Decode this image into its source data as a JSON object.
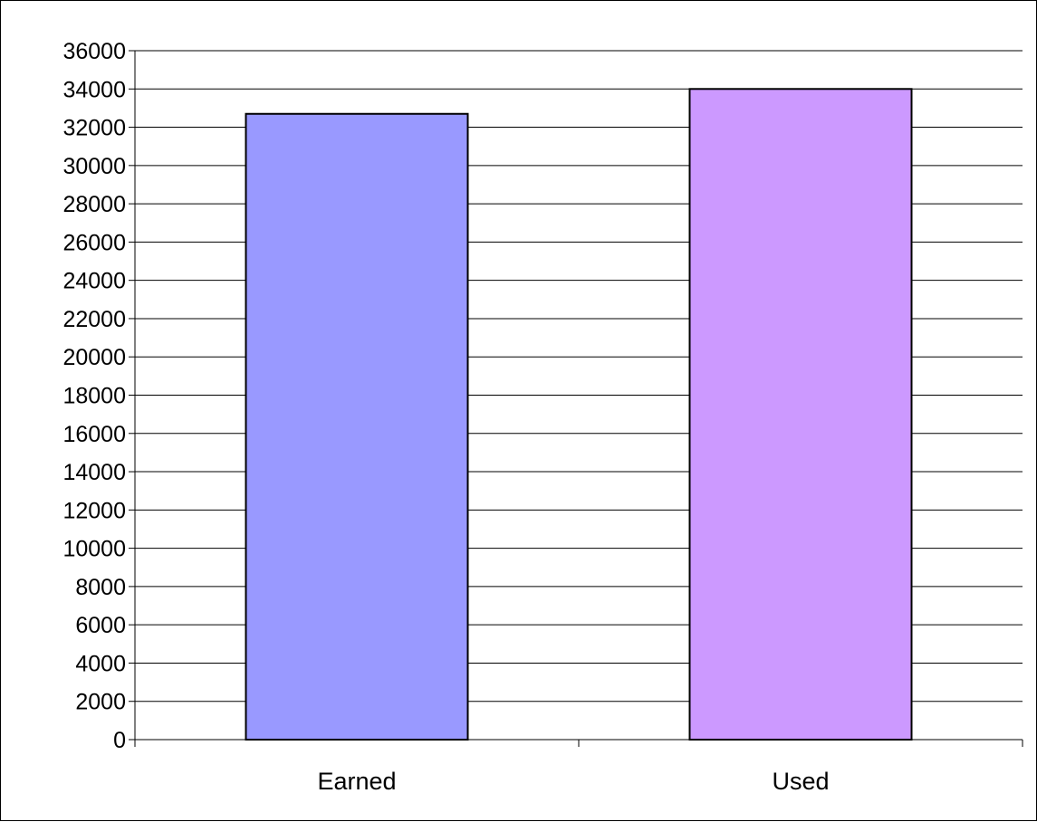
{
  "chart_data": {
    "type": "bar",
    "title": "",
    "xlabel": "",
    "ylabel": "",
    "categories": [
      "Earned",
      "Used"
    ],
    "values": [
      32700,
      34000
    ],
    "colors": [
      "#9999ff",
      "#cc99ff"
    ],
    "ylim": [
      0,
      36000
    ],
    "ytick_step": 2000,
    "ytick_labels": [
      "0",
      "2000",
      "4000",
      "6000",
      "8000",
      "10000",
      "12000",
      "14000",
      "16000",
      "18000",
      "20000",
      "22000",
      "24000",
      "26000",
      "28000",
      "30000",
      "32000",
      "34000",
      "36000"
    ],
    "grid": true,
    "legend": "none"
  }
}
